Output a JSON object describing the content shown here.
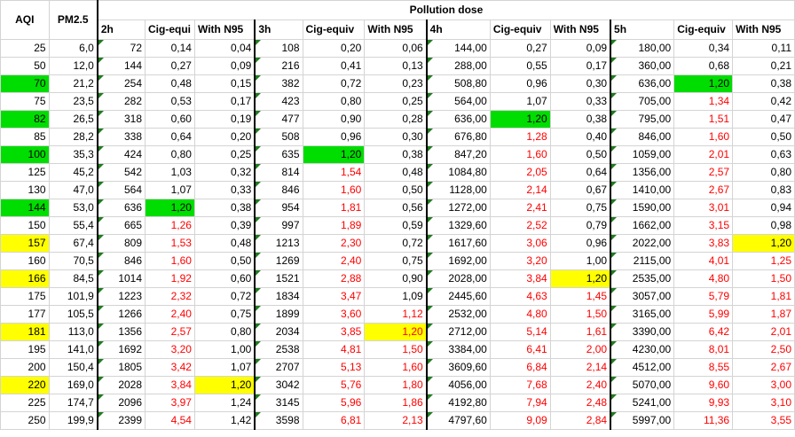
{
  "headers": {
    "aqi": "AQI",
    "pm25": "PM2.5",
    "group": "Pollution dose",
    "sub": [
      "2h",
      "Cig-equi",
      "With N95",
      "3h",
      "Cig-equiv",
      "With N95",
      "4h",
      "Cig-equiv",
      "With N95",
      "5h",
      "Cig-equiv",
      "With N95"
    ]
  },
  "colors": {
    "green": "#00dd00",
    "yellow": "#ffff00",
    "red": "#ff0000"
  },
  "rows": [
    [
      "25",
      "6,0",
      "72",
      "0,14",
      "0,04",
      "108",
      "0,20",
      "0,06",
      "144,00",
      "0,27",
      "0,09",
      "180,00",
      "0,34",
      "0,11"
    ],
    [
      "50",
      "12,0",
      "144",
      "0,27",
      "0,09",
      "216",
      "0,41",
      "0,13",
      "288,00",
      "0,55",
      "0,17",
      "360,00",
      "0,68",
      "0,21"
    ],
    [
      "70",
      "21,2",
      "254",
      "0,48",
      "0,15",
      "382",
      "0,72",
      "0,23",
      "508,80",
      "0,96",
      "0,30",
      "636,00",
      "1,20",
      "0,38"
    ],
    [
      "75",
      "23,5",
      "282",
      "0,53",
      "0,17",
      "423",
      "0,80",
      "0,25",
      "564,00",
      "1,07",
      "0,33",
      "705,00",
      "1,34",
      "0,42"
    ],
    [
      "82",
      "26,5",
      "318",
      "0,60",
      "0,19",
      "477",
      "0,90",
      "0,28",
      "636,00",
      "1,20",
      "0,38",
      "795,00",
      "1,51",
      "0,47"
    ],
    [
      "85",
      "28,2",
      "338",
      "0,64",
      "0,20",
      "508",
      "0,96",
      "0,30",
      "676,80",
      "1,28",
      "0,40",
      "846,00",
      "1,60",
      "0,50"
    ],
    [
      "100",
      "35,3",
      "424",
      "0,80",
      "0,25",
      "635",
      "1,20",
      "0,38",
      "847,20",
      "1,60",
      "0,50",
      "1059,00",
      "2,01",
      "0,63"
    ],
    [
      "125",
      "45,2",
      "542",
      "1,03",
      "0,32",
      "814",
      "1,54",
      "0,48",
      "1084,80",
      "2,05",
      "0,64",
      "1356,00",
      "2,57",
      "0,80"
    ],
    [
      "130",
      "47,0",
      "564",
      "1,07",
      "0,33",
      "846",
      "1,60",
      "0,50",
      "1128,00",
      "2,14",
      "0,67",
      "1410,00",
      "2,67",
      "0,83"
    ],
    [
      "144",
      "53,0",
      "636",
      "1,20",
      "0,38",
      "954",
      "1,81",
      "0,56",
      "1272,00",
      "2,41",
      "0,75",
      "1590,00",
      "3,01",
      "0,94"
    ],
    [
      "150",
      "55,4",
      "665",
      "1,26",
      "0,39",
      "997",
      "1,89",
      "0,59",
      "1329,60",
      "2,52",
      "0,79",
      "1662,00",
      "3,15",
      "0,98"
    ],
    [
      "157",
      "67,4",
      "809",
      "1,53",
      "0,48",
      "1213",
      "2,30",
      "0,72",
      "1617,60",
      "3,06",
      "0,96",
      "2022,00",
      "3,83",
      "1,20"
    ],
    [
      "160",
      "70,5",
      "846",
      "1,60",
      "0,50",
      "1269",
      "2,40",
      "0,75",
      "1692,00",
      "3,20",
      "1,00",
      "2115,00",
      "4,01",
      "1,25"
    ],
    [
      "166",
      "84,5",
      "1014",
      "1,92",
      "0,60",
      "1521",
      "2,88",
      "0,90",
      "2028,00",
      "3,84",
      "1,20",
      "2535,00",
      "4,80",
      "1,50"
    ],
    [
      "175",
      "101,9",
      "1223",
      "2,32",
      "0,72",
      "1834",
      "3,47",
      "1,09",
      "2445,60",
      "4,63",
      "1,45",
      "3057,00",
      "5,79",
      "1,81"
    ],
    [
      "177",
      "105,5",
      "1266",
      "2,40",
      "0,75",
      "1899",
      "3,60",
      "1,12",
      "2532,00",
      "4,80",
      "1,50",
      "3165,00",
      "5,99",
      "1,87"
    ],
    [
      "181",
      "113,0",
      "1356",
      "2,57",
      "0,80",
      "2034",
      "3,85",
      "1,20",
      "2712,00",
      "5,14",
      "1,61",
      "3390,00",
      "6,42",
      "2,01"
    ],
    [
      "195",
      "141,0",
      "1692",
      "3,20",
      "1,00",
      "2538",
      "4,81",
      "1,50",
      "3384,00",
      "6,41",
      "2,00",
      "4230,00",
      "8,01",
      "2,50"
    ],
    [
      "200",
      "150,4",
      "1805",
      "3,42",
      "1,07",
      "2707",
      "5,13",
      "1,60",
      "3609,60",
      "6,84",
      "2,14",
      "4512,00",
      "8,55",
      "2,67"
    ],
    [
      "220",
      "169,0",
      "2028",
      "3,84",
      "1,20",
      "3042",
      "5,76",
      "1,80",
      "4056,00",
      "7,68",
      "2,40",
      "5070,00",
      "9,60",
      "3,00"
    ],
    [
      "225",
      "174,7",
      "2096",
      "3,97",
      "1,24",
      "3145",
      "5,96",
      "1,86",
      "4192,80",
      "7,94",
      "2,48",
      "5241,00",
      "9,93",
      "3,10"
    ],
    [
      "250",
      "199,9",
      "2399",
      "4,54",
      "1,42",
      "3598",
      "6,81",
      "2,13",
      "4797,60",
      "9,09",
      "2,84",
      "5997,00",
      "11,36",
      "3,55"
    ]
  ],
  "highlights": {
    "green": [
      [
        2,
        0
      ],
      [
        2,
        12
      ],
      [
        4,
        0
      ],
      [
        4,
        9
      ],
      [
        6,
        0
      ],
      [
        6,
        6
      ],
      [
        9,
        0
      ],
      [
        9,
        3
      ]
    ],
    "yellow": [
      [
        11,
        0
      ],
      [
        11,
        13
      ],
      [
        13,
        0
      ],
      [
        13,
        10
      ],
      [
        16,
        0
      ],
      [
        16,
        7
      ],
      [
        19,
        0
      ],
      [
        19,
        4
      ]
    ]
  },
  "red_cells": {
    "3": [
      10,
      11,
      12,
      13,
      14,
      15,
      16,
      17,
      18,
      19,
      20,
      21
    ],
    "6": [
      7,
      8,
      9,
      10,
      11,
      12,
      13,
      14,
      15,
      16,
      17,
      18,
      19,
      20,
      21
    ],
    "7": [
      15,
      16,
      17,
      18,
      19,
      20,
      21
    ],
    "9": [
      5,
      6,
      7,
      8,
      9,
      10,
      11,
      12,
      13,
      14,
      15,
      16,
      17,
      18,
      19,
      20,
      21
    ],
    "10": [
      14,
      15,
      16,
      17,
      18,
      19,
      20,
      21
    ],
    "12": [
      3,
      4,
      5,
      6,
      7,
      8,
      9,
      10,
      11,
      12,
      13,
      14,
      15,
      16,
      17,
      18,
      19,
      20,
      21
    ],
    "13": [
      12,
      13,
      14,
      15,
      16,
      17,
      18,
      19,
      20,
      21
    ]
  }
}
